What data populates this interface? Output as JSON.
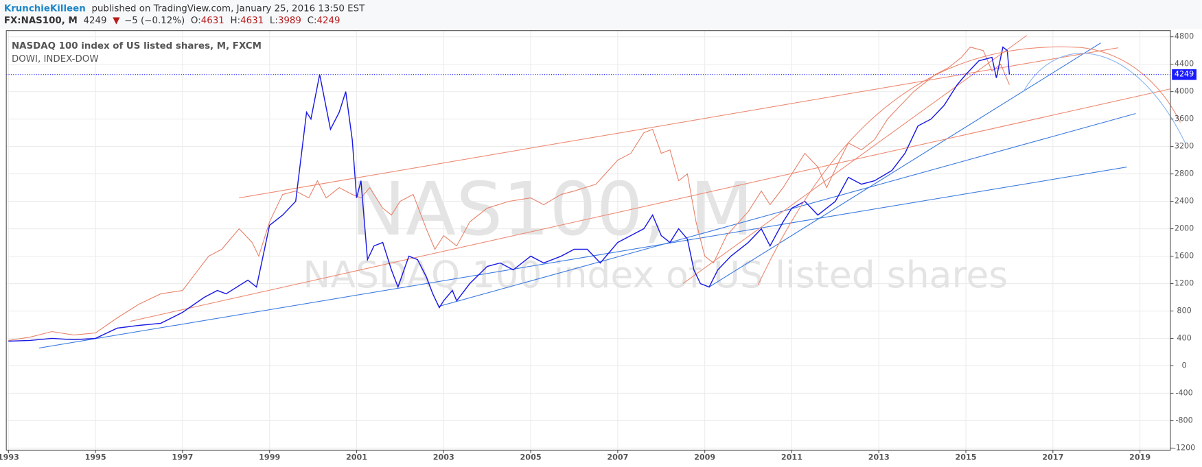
{
  "header": {
    "author": "KrunchieKilleen",
    "published": "published on TradingView.com, January 25, 2016 13:50 EST",
    "symbol": "FX:NAS100, M",
    "price": "4249",
    "arrow": "▼",
    "change": "−5 (−0.12%)",
    "open_label": "O:",
    "open": "4631",
    "high_label": "H:",
    "high": "4631",
    "low_label": "L:",
    "low": "3989",
    "close_label": "C:",
    "close": "4249"
  },
  "chart_data": {
    "type": "line",
    "watermark": {
      "symbol": "NAS100, M",
      "description": "NASDAQ 100 index of US listed shares"
    },
    "xlim": [
      1992.95,
      2019.7
    ],
    "xticks": [
      1993,
      1995,
      1997,
      1999,
      2001,
      2003,
      2005,
      2007,
      2009,
      2011,
      2013,
      2015,
      2017,
      2019
    ],
    "ylim": [
      -1230,
      4890
    ],
    "yticks": [
      -1200,
      -800,
      -400,
      0,
      400,
      800,
      1200,
      1600,
      2000,
      2400,
      2800,
      3200,
      3600,
      4000,
      4400,
      4800
    ],
    "grid": true,
    "last_price": 4249,
    "last_price_color": "#1a1aff",
    "series": [
      {
        "name": "NASDAQ 100 index of US listed shares, M, FXCM",
        "color": "#1a1ae6",
        "x": [
          1993.0,
          1993.5,
          1994.0,
          1994.5,
          1995.0,
          1995.5,
          1996.0,
          1996.5,
          1997.0,
          1997.5,
          1997.8,
          1998.0,
          1998.5,
          1998.7,
          1999.0,
          1999.3,
          1999.6,
          1999.85,
          1999.95,
          2000.15,
          2000.4,
          2000.6,
          2000.75,
          2000.9,
          2001.0,
          2001.1,
          2001.25,
          2001.4,
          2001.6,
          2001.8,
          2001.95,
          2002.2,
          2002.4,
          2002.6,
          2002.75,
          2002.9,
          2003.0,
          2003.2,
          2003.3,
          2003.6,
          2004.0,
          2004.3,
          2004.6,
          2005.0,
          2005.3,
          2005.7,
          2006.0,
          2006.3,
          2006.6,
          2007.0,
          2007.3,
          2007.6,
          2007.8,
          2008.0,
          2008.2,
          2008.4,
          2008.6,
          2008.75,
          2008.9,
          2009.1,
          2009.3,
          2009.6,
          2010.0,
          2010.3,
          2010.5,
          2010.8,
          2011.0,
          2011.3,
          2011.6,
          2011.8,
          2012.0,
          2012.3,
          2012.6,
          2012.9,
          2013.3,
          2013.6,
          2013.9,
          2014.2,
          2014.5,
          2014.8,
          2015.0,
          2015.3,
          2015.6,
          2015.7,
          2015.85,
          2015.95,
          2016.0
        ],
        "values": [
          360,
          370,
          400,
          380,
          400,
          550,
          590,
          620,
          780,
          1000,
          1100,
          1050,
          1250,
          1150,
          2050,
          2200,
          2400,
          3700,
          3600,
          4250,
          3450,
          3700,
          4000,
          3300,
          2450,
          2700,
          1550,
          1750,
          1800,
          1400,
          1150,
          1600,
          1550,
          1300,
          1050,
          850,
          950,
          1100,
          950,
          1200,
          1450,
          1500,
          1400,
          1600,
          1500,
          1600,
          1700,
          1700,
          1500,
          1800,
          1900,
          2000,
          2200,
          1900,
          1800,
          2000,
          1850,
          1400,
          1200,
          1150,
          1400,
          1600,
          1800,
          2000,
          1750,
          2100,
          2300,
          2400,
          2200,
          2300,
          2400,
          2750,
          2650,
          2700,
          2850,
          3100,
          3500,
          3600,
          3800,
          4100,
          4250,
          4450,
          4500,
          4200,
          4650,
          4600,
          4250
        ]
      },
      {
        "name": "DOWI, INDEX-DOW",
        "color": "#e8826a",
        "x": [
          1993.0,
          1993.5,
          1994.0,
          1994.5,
          1995.0,
          1995.5,
          1996.0,
          1996.5,
          1997.0,
          1997.3,
          1997.6,
          1997.9,
          1998.3,
          1998.6,
          1998.75,
          1999.0,
          1999.3,
          1999.6,
          1999.9,
          2000.1,
          2000.3,
          2000.6,
          2000.9,
          2001.1,
          2001.3,
          2001.6,
          2001.8,
          2002.0,
          2002.3,
          2002.6,
          2002.8,
          2003.0,
          2003.3,
          2003.6,
          2004.0,
          2004.5,
          2005.0,
          2005.3,
          2005.7,
          2006.0,
          2006.5,
          2007.0,
          2007.3,
          2007.6,
          2007.8,
          2008.0,
          2008.2,
          2008.4,
          2008.6,
          2008.8,
          2009.0,
          2009.2,
          2009.5,
          2010.0,
          2010.3,
          2010.5,
          2010.8,
          2011.0,
          2011.3,
          2011.6,
          2011.8,
          2012.1,
          2012.3,
          2012.6,
          2012.9,
          2013.2,
          2013.5,
          2013.8,
          2014.0,
          2014.3,
          2014.6,
          2014.9,
          2015.1,
          2015.4,
          2015.6,
          2015.8,
          2016.0
        ],
        "values": [
          370,
          420,
          500,
          450,
          480,
          700,
          900,
          1050,
          1100,
          1350,
          1600,
          1700,
          2000,
          1800,
          1600,
          2100,
          2500,
          2550,
          2450,
          2700,
          2450,
          2600,
          2500,
          2450,
          2600,
          2300,
          2200,
          2400,
          2500,
          2000,
          1700,
          1900,
          1750,
          2100,
          2300,
          2400,
          2450,
          2350,
          2500,
          2550,
          2650,
          3000,
          3100,
          3400,
          3450,
          3100,
          3150,
          2700,
          2800,
          2100,
          1600,
          1500,
          1900,
          2250,
          2550,
          2350,
          2600,
          2800,
          3100,
          2900,
          2600,
          3000,
          3250,
          3150,
          3300,
          3600,
          3800,
          4000,
          4100,
          4250,
          4350,
          4500,
          4650,
          4600,
          4300,
          4400,
          4100
        ]
      }
    ],
    "trendlines": [
      {
        "color": "#3d7be0",
        "x": [
          1993.7,
          2018.7
        ],
        "values": [
          260,
          2900
        ]
      },
      {
        "color": "#3d7be0",
        "x": [
          2002.9,
          2018.9
        ],
        "values": [
          870,
          3680
        ]
      },
      {
        "color": "#3d7be0",
        "x": [
          2009.1,
          2018.1
        ],
        "values": [
          1150,
          4710
        ]
      },
      {
        "color": "#ee8a73",
        "x": [
          1998.3,
          2018.5
        ],
        "values": [
          2450,
          4640
        ]
      },
      {
        "color": "#ee8a73",
        "x": [
          1995.8,
          2019.7
        ],
        "values": [
          650,
          4040
        ]
      },
      {
        "color": "#ee8a73",
        "x": [
          2008.5,
          2016.4
        ],
        "values": [
          1200,
          4820
        ]
      }
    ]
  }
}
